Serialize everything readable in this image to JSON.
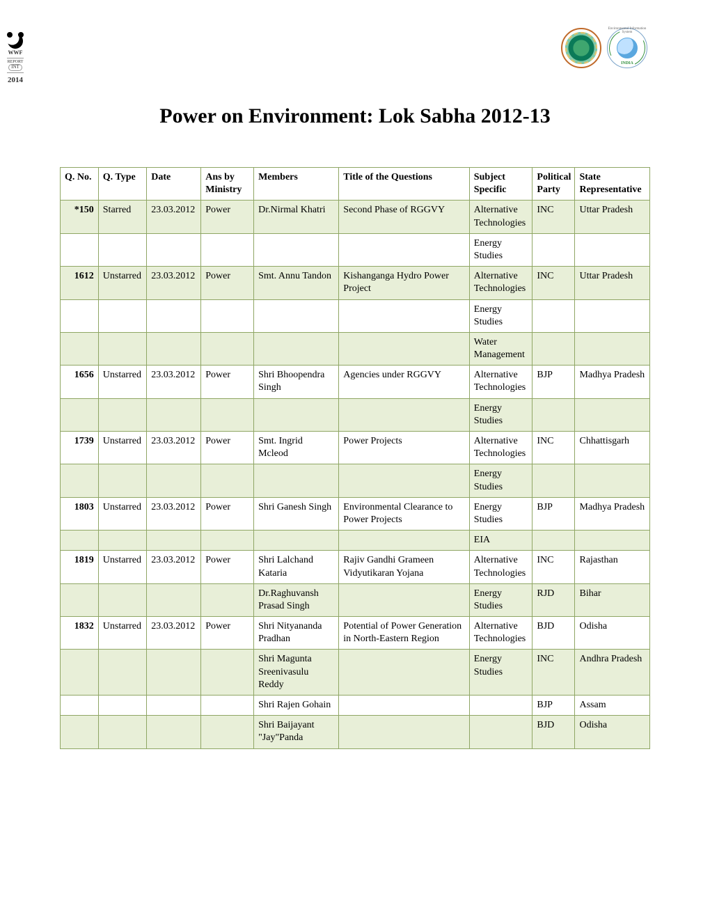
{
  "sidebar": {
    "org": "WWF",
    "report": "REPORT",
    "int": "INT",
    "year": "2014"
  },
  "logos": {
    "india_label": "INDIA",
    "arc_text": "Environmental Information System"
  },
  "title": "Power on Environment: Lok Sabha 2012-13",
  "columns": [
    "Q. No.",
    "Q. Type",
    "Date",
    "Ans by Ministry",
    "Members",
    "Title of the Questions",
    "Subject Specific",
    "Political Party",
    "State Representative"
  ],
  "rows": [
    {
      "fill": true,
      "cells": [
        "*150",
        "Starred",
        "23.03.2012",
        "Power",
        "Dr.Nirmal Khatri",
        "Second Phase of RGGVY",
        "Alternative Technologies",
        "INC",
        "Uttar Pradesh"
      ]
    },
    {
      "fill": false,
      "cells": [
        "",
        "",
        "",
        "",
        "",
        "",
        "Energy Studies",
        "",
        ""
      ]
    },
    {
      "fill": true,
      "cells": [
        "1612",
        "Unstarred",
        "23.03.2012",
        "Power",
        "Smt. Annu Tandon",
        "Kishanganga Hydro Power Project",
        "Alternative Technologies",
        "INC",
        "Uttar Pradesh"
      ]
    },
    {
      "fill": false,
      "cells": [
        "",
        "",
        "",
        "",
        "",
        "",
        "Energy Studies",
        "",
        ""
      ]
    },
    {
      "fill": true,
      "cells": [
        "",
        "",
        "",
        "",
        "",
        "",
        "Water Management",
        "",
        ""
      ]
    },
    {
      "fill": false,
      "cells": [
        "1656",
        "Unstarred",
        "23.03.2012",
        "Power",
        "Shri Bhoopendra Singh",
        "Agencies under RGGVY",
        "Alternative Technologies",
        "BJP",
        "Madhya Pradesh"
      ]
    },
    {
      "fill": true,
      "cells": [
        "",
        "",
        "",
        "",
        "",
        "",
        "Energy Studies",
        "",
        ""
      ]
    },
    {
      "fill": false,
      "cells": [
        "1739",
        "Unstarred",
        "23.03.2012",
        "Power",
        "Smt. Ingrid Mcleod",
        "Power Projects",
        "Alternative Technologies",
        "INC",
        "Chhattisgarh"
      ]
    },
    {
      "fill": true,
      "cells": [
        "",
        "",
        "",
        "",
        "",
        "",
        "Energy Studies",
        "",
        ""
      ]
    },
    {
      "fill": false,
      "cells": [
        "1803",
        "Unstarred",
        "23.03.2012",
        "Power",
        "Shri Ganesh Singh",
        "Environmental Clearance to Power Projects",
        "Energy Studies",
        "BJP",
        "Madhya Pradesh"
      ]
    },
    {
      "fill": true,
      "cells": [
        "",
        "",
        "",
        "",
        "",
        "",
        "EIA",
        "",
        ""
      ]
    },
    {
      "fill": false,
      "cells": [
        "1819",
        "Unstarred",
        "23.03.2012",
        "Power",
        "Shri Lalchand Kataria",
        "Rajiv Gandhi Grameen Vidyutikaran Yojana",
        "Alternative Technologies",
        "INC",
        "Rajasthan"
      ]
    },
    {
      "fill": true,
      "cells": [
        "",
        "",
        "",
        "",
        "Dr.Raghuvansh Prasad Singh",
        "",
        "Energy Studies",
        "RJD",
        "Bihar"
      ]
    },
    {
      "fill": false,
      "cells": [
        "1832",
        "Unstarred",
        "23.03.2012",
        "Power",
        "Shri Nityananda Pradhan",
        "Potential of Power Generation in North-Eastern Region",
        "Alternative Technologies",
        "BJD",
        "Odisha"
      ]
    },
    {
      "fill": true,
      "cells": [
        "",
        "",
        "",
        "",
        "Shri Magunta Sreenivasulu Reddy",
        "",
        "Energy Studies",
        "INC",
        "Andhra Pradesh"
      ]
    },
    {
      "fill": false,
      "cells": [
        "",
        "",
        "",
        "",
        "Shri Rajen Gohain",
        "",
        "",
        "BJP",
        "Assam"
      ]
    },
    {
      "fill": true,
      "cells": [
        "",
        "",
        "",
        "",
        "Shri Baijayant \"Jay\"Panda",
        "",
        "",
        "BJD",
        "Odisha"
      ]
    }
  ],
  "style": {
    "row_fill_color": "#e8efd8",
    "row_plain_color": "#ffffff",
    "border_color": "#8fa664",
    "title_fontsize": 30,
    "cell_fontsize": 14,
    "font_family": "Times New Roman"
  }
}
